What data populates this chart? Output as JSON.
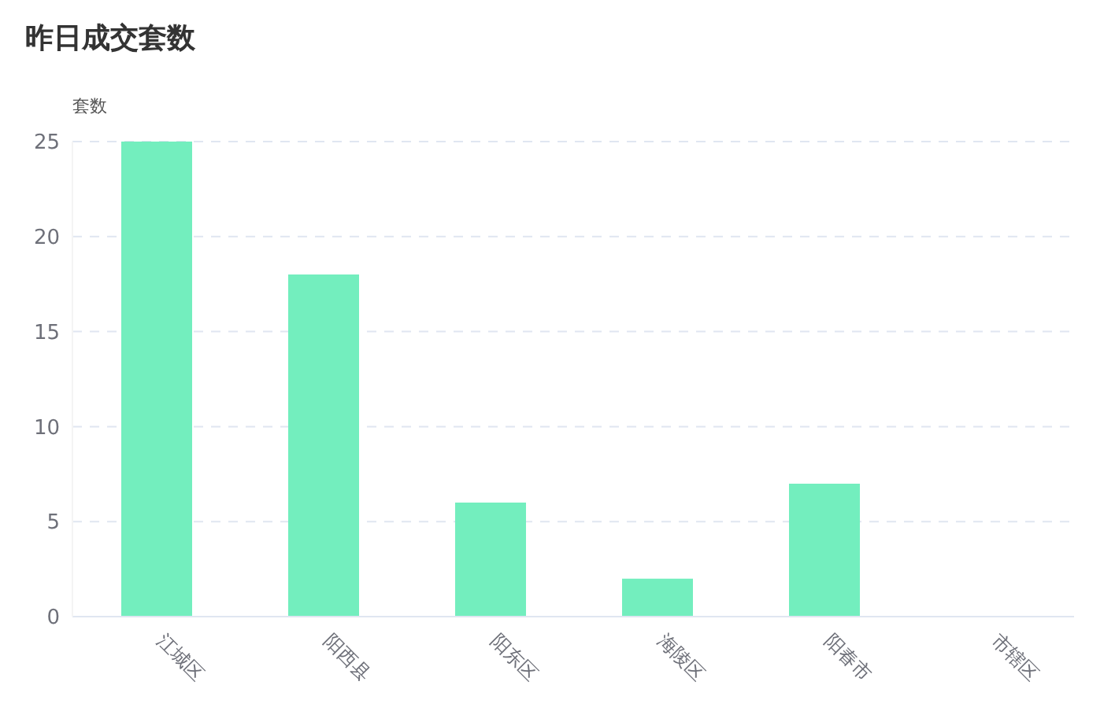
{
  "chart_data": {
    "type": "bar",
    "title": "昨日成交套数",
    "ylabel": "套数",
    "categories": [
      "江城区",
      "阳西县",
      "阳东区",
      "海陵区",
      "阳春市",
      "市辖区"
    ],
    "values": [
      25,
      18,
      6,
      2,
      7,
      0
    ],
    "color": "#73eebe",
    "ylim": [
      0,
      25
    ],
    "yticks": [
      0,
      5,
      10,
      15,
      20,
      25
    ],
    "grid": "y"
  }
}
